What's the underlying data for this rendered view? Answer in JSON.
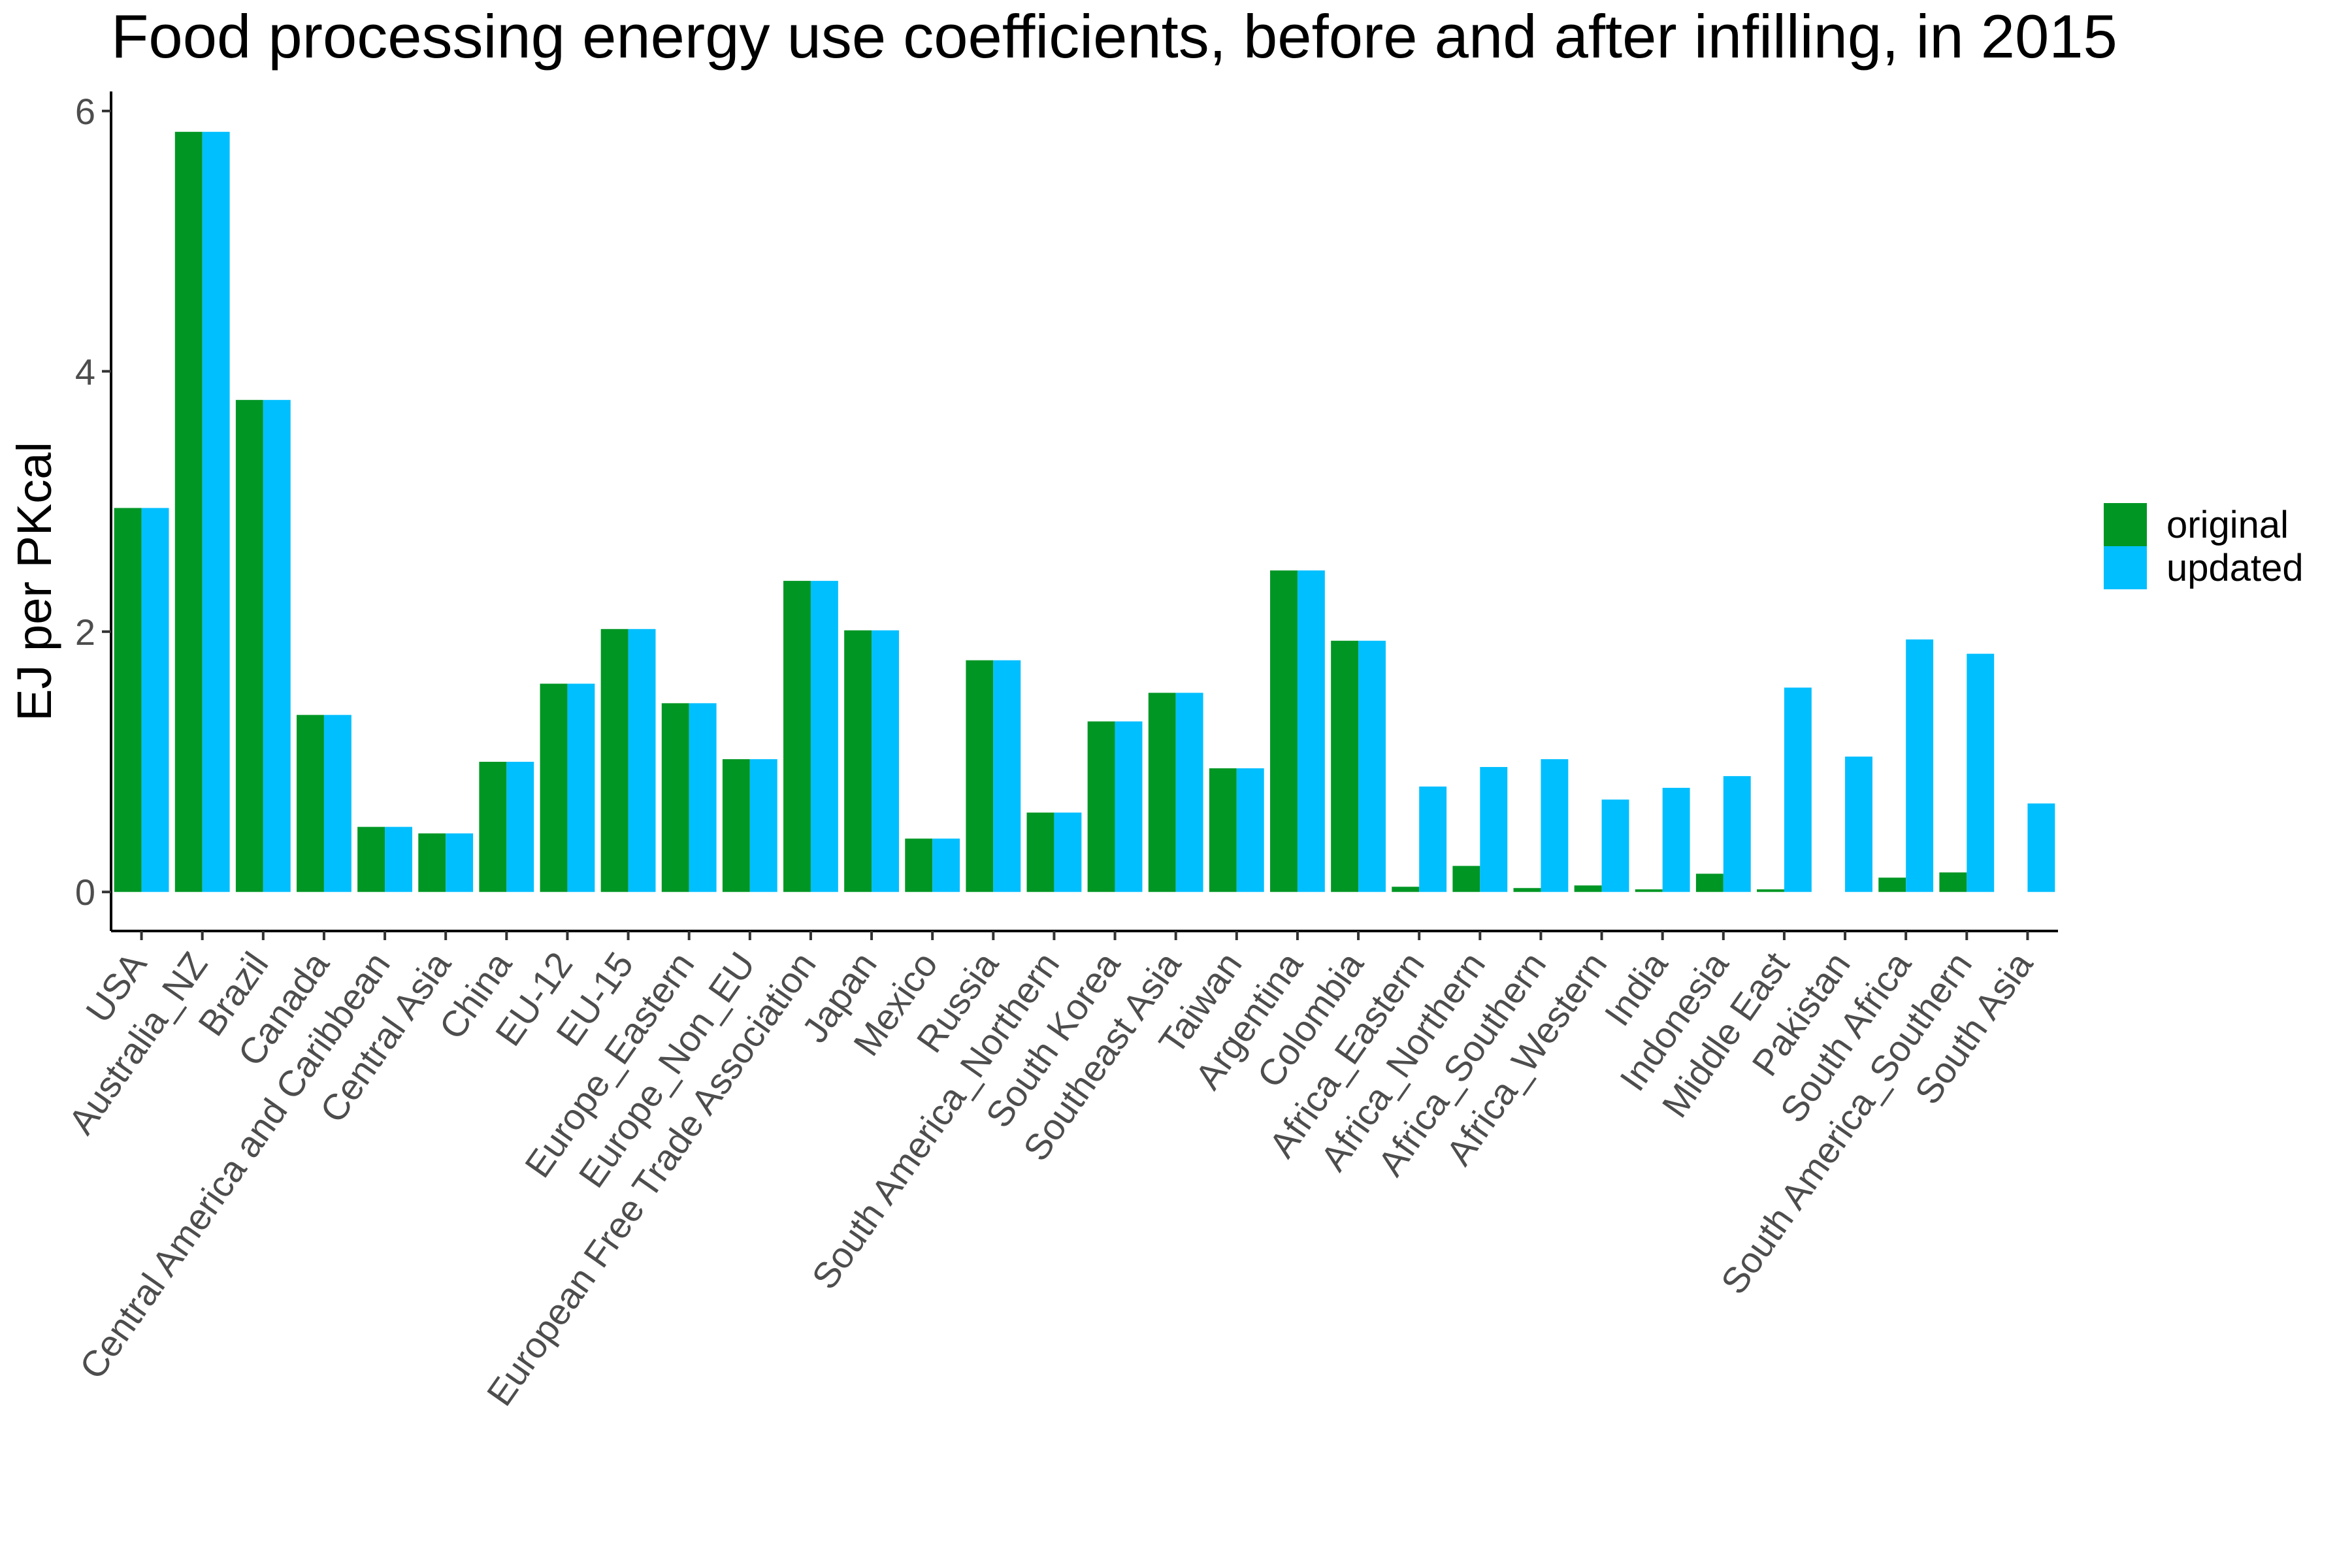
{
  "chart_data": {
    "type": "bar",
    "title": "Food processing energy use coefficients, before and after infilling, in 2015",
    "xlabel": "",
    "ylabel": "EJ per PKcal",
    "ylim": [
      -0.3,
      6.15
    ],
    "yticks": [
      0,
      2,
      4,
      6
    ],
    "grid": false,
    "legend_position": "right",
    "categories": [
      "USA",
      "Australia_NZ",
      "Brazil",
      "Canada",
      "Central America and Caribbean",
      "Central Asia",
      "China",
      "EU-12",
      "EU-15",
      "Europe_Eastern",
      "Europe_Non_EU",
      "European Free Trade Association",
      "Japan",
      "Mexico",
      "Russia",
      "South America_Northern",
      "South Korea",
      "Southeast Asia",
      "Taiwan",
      "Argentina",
      "Colombia",
      "Africa_Eastern",
      "Africa_Northern",
      "Africa_Southern",
      "Africa_Western",
      "India",
      "Indonesia",
      "Middle East",
      "Pakistan",
      "South Africa",
      "South America_Southern",
      "South Asia"
    ],
    "series": [
      {
        "name": "original",
        "color": "#009624",
        "values": [
          2.95,
          5.84,
          3.78,
          1.36,
          0.5,
          0.45,
          1.0,
          1.6,
          2.02,
          1.45,
          1.02,
          2.39,
          2.01,
          0.41,
          1.78,
          0.61,
          1.31,
          1.53,
          0.95,
          2.47,
          1.93,
          0.04,
          0.2,
          0.03,
          0.05,
          0.02,
          0.14,
          0.02,
          0.0,
          0.11,
          0.15,
          0.0
        ]
      },
      {
        "name": "updated",
        "color": "#00bfff",
        "values": [
          2.95,
          5.84,
          3.78,
          1.36,
          0.5,
          0.45,
          1.0,
          1.6,
          2.02,
          1.45,
          1.02,
          2.39,
          2.01,
          0.41,
          1.78,
          0.61,
          1.31,
          1.53,
          0.95,
          2.47,
          1.93,
          0.81,
          0.96,
          1.02,
          0.71,
          0.8,
          0.89,
          1.57,
          1.04,
          1.94,
          1.83,
          0.68
        ]
      }
    ]
  }
}
